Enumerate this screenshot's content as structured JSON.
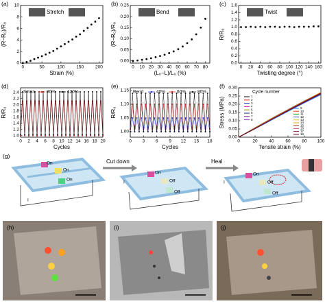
{
  "chart_data": [
    {
      "type": "scatter",
      "label": "(a)",
      "annotation": "Stretch",
      "xlabel": "Strain (%)",
      "ylabel": "(R−R₀)/R₀",
      "color": "#000000",
      "x": [
        0,
        10,
        20,
        30,
        40,
        50,
        60,
        70,
        80,
        90,
        100,
        110,
        120,
        130,
        140,
        150,
        160,
        170,
        180,
        190,
        200
      ],
      "values": [
        0,
        0.2,
        0.4,
        0.7,
        0.95,
        1.2,
        1.5,
        1.8,
        2.1,
        2.5,
        2.9,
        3.3,
        3.7,
        4.1,
        4.6,
        5.0,
        5.6,
        6.1,
        6.7,
        7.2,
        7.8
      ],
      "xlim": [
        -6,
        210
      ],
      "ylim": [
        0,
        10
      ],
      "xticks": [
        0,
        50,
        100,
        150,
        200
      ],
      "yticks": [
        0,
        2,
        4,
        6,
        8,
        10
      ]
    },
    {
      "type": "scatter",
      "label": "(b)",
      "annotation": "Bend",
      "xlabel": "(L₀−L)/L₀ (%)",
      "ylabel": "(R−R₀)/R₀",
      "color": "#000000",
      "x": [
        0,
        5,
        10,
        15,
        20,
        25,
        30,
        35,
        40,
        45,
        50,
        55,
        60,
        65,
        70,
        75,
        80
      ],
      "values": [
        0,
        0.002,
        0.005,
        0.008,
        0.012,
        0.017,
        0.022,
        0.028,
        0.035,
        0.043,
        0.053,
        0.065,
        0.08,
        0.097,
        0.12,
        0.15,
        0.19
      ],
      "xlim": [
        -3,
        85
      ],
      "ylim": [
        -0.01,
        0.25
      ],
      "xticks": [
        0,
        10,
        20,
        30,
        40,
        50,
        60,
        70,
        80
      ],
      "yticks": [
        {
          "value": 0,
          "label": "0.00"
        },
        0.05,
        {
          "value": 0.1,
          "label": "0.10"
        },
        0.15,
        {
          "value": 0.2,
          "label": "0.20"
        },
        0.25
      ]
    },
    {
      "type": "scatter",
      "label": "(c)",
      "annotation": "Twist",
      "xlabel": "Twisting degree (°)",
      "ylabel": "R/R₀",
      "color": "#000000",
      "x": [
        0,
        10,
        20,
        30,
        40,
        50,
        60,
        70,
        80,
        90,
        100,
        110,
        120,
        130,
        140,
        150,
        160
      ],
      "values": [
        1.0,
        1.0,
        1.01,
        1.0,
        1.01,
        1.0,
        1.01,
        1.01,
        1.0,
        1.01,
        1.01,
        1.0,
        1.01,
        1.01,
        1.01,
        1.02,
        1.02
      ],
      "xlim": [
        -5,
        165
      ],
      "ylim": [
        0,
        1.6
      ],
      "xticks": [
        0,
        20,
        40,
        60,
        80,
        100,
        120,
        140,
        160
      ],
      "yticks": [
        {
          "value": 0,
          "label": "0.0"
        },
        0.2,
        0.4,
        0.6,
        0.8,
        {
          "value": 1,
          "label": "1.0"
        },
        1.2,
        1.4,
        1.6
      ]
    },
    {
      "type": "line",
      "label": "(d)",
      "legend_title": "Strain",
      "xlabel": "Cycles",
      "ylabel": "R/R₀",
      "markers": true,
      "x": [
        0,
        0.5,
        1,
        1.5,
        2,
        2.5,
        3,
        3.5,
        4,
        4.5,
        5,
        5.5,
        6,
        6.5,
        7,
        7.5,
        8,
        8.5,
        9,
        9.5,
        10,
        10.5,
        11,
        11.5,
        12,
        12.5,
        13,
        13.5,
        14,
        14.5,
        15,
        15.5,
        16,
        16.5,
        17,
        17.5,
        18,
        18.5,
        19,
        19.5,
        20
      ],
      "series": [
        {
          "name": "80%",
          "color": "#d62020",
          "values": [
            1.0,
            2.12,
            1.0,
            2.12,
            1.0,
            2.12,
            1.0,
            2.12,
            1.0,
            2.12,
            1.0,
            2.12,
            1.0,
            2.12,
            1.0,
            2.12,
            1.0,
            2.12,
            1.0,
            2.12,
            1.0,
            2.12,
            1.0,
            2.12,
            1.0,
            2.12,
            1.0,
            2.12,
            1.0,
            2.12,
            1.0,
            2.12,
            1.0,
            2.12,
            1.0,
            2.12,
            1.0,
            2.12,
            1.0,
            2.12,
            1.0
          ]
        },
        {
          "name": "120%",
          "color": "#111111",
          "values": [
            1.03,
            2.42,
            1.03,
            2.42,
            1.03,
            2.42,
            1.03,
            2.42,
            1.03,
            2.42,
            1.03,
            2.42,
            1.03,
            2.42,
            1.03,
            2.42,
            1.03,
            2.42,
            1.03,
            2.42,
            1.03,
            2.42,
            1.03,
            2.42,
            1.03,
            2.42,
            1.03,
            2.42,
            1.03,
            2.42,
            1.03,
            2.42,
            1.03,
            2.42,
            1.03,
            2.42,
            1.03,
            2.42,
            1.03,
            2.42,
            1.03
          ]
        }
      ],
      "xlim": [
        0,
        20
      ],
      "ylim": [
        0.95,
        2.55
      ],
      "xticks": [
        0,
        2,
        4,
        6,
        8,
        10,
        12,
        14,
        16,
        18,
        20
      ],
      "yticks": [
        {
          "value": 1,
          "label": "1.0"
        },
        1.2,
        1.4,
        1.6,
        1.8,
        {
          "value": 2,
          "label": "2.0"
        },
        2.2,
        2.4
      ]
    },
    {
      "type": "line",
      "label": "(e)",
      "legend_title": "Bend",
      "xlabel": "Cycles",
      "ylabel": "R/R₀",
      "markers": true,
      "x": [
        0,
        0.5,
        1,
        1.5,
        2,
        2.5,
        3,
        3.5,
        4,
        4.5,
        5,
        5.5,
        6,
        6.5,
        7,
        7.5,
        8,
        8.5,
        9,
        9.5,
        10,
        10.5,
        11,
        11.5,
        12,
        12.5,
        13,
        13.5,
        14,
        14.5,
        15,
        15.5,
        16,
        16.5,
        17,
        17.5,
        18
      ],
      "series": [
        {
          "name": "40%",
          "color": "#2030d0",
          "values": [
            1.0,
            1.05,
            1.0,
            1.05,
            1.0,
            1.05,
            1.0,
            1.05,
            1.0,
            1.05,
            1.0,
            1.05,
            1.0,
            1.05,
            1.0,
            1.05,
            1.0,
            1.05,
            1.0,
            1.05,
            1.0,
            1.05,
            1.0,
            1.05,
            1.0,
            1.05,
            1.0,
            1.05,
            1.0,
            1.05,
            1.0,
            1.05,
            1.0,
            1.05,
            1.0,
            1.05,
            1.0
          ]
        },
        {
          "name": "60%",
          "color": "#d62020",
          "values": [
            1.01,
            1.1,
            1.01,
            1.1,
            1.01,
            1.1,
            1.01,
            1.1,
            1.01,
            1.1,
            1.01,
            1.1,
            1.01,
            1.1,
            1.01,
            1.1,
            1.01,
            1.1,
            1.01,
            1.1,
            1.01,
            1.1,
            1.01,
            1.1,
            1.01,
            1.1,
            1.01,
            1.1,
            1.01,
            1.1,
            1.01,
            1.1,
            1.01,
            1.1,
            1.01,
            1.1,
            1.01
          ]
        },
        {
          "name": "80%",
          "color": "#111111",
          "values": [
            1.0,
            1.14,
            1.0,
            1.14,
            1.0,
            1.14,
            1.0,
            1.14,
            1.0,
            1.14,
            1.0,
            1.14,
            1.0,
            1.14,
            1.0,
            1.14,
            1.0,
            1.14,
            1.0,
            1.14,
            1.0,
            1.14,
            1.0,
            1.14,
            1.0,
            1.14,
            1.0,
            1.14,
            1.0,
            1.14,
            1.0,
            1.14,
            1.0,
            1.14,
            1.0,
            1.14,
            1.0
          ]
        }
      ],
      "xlim": [
        0,
        18
      ],
      "ylim": [
        0.98,
        1.16
      ],
      "xticks": [
        0,
        3,
        6,
        9,
        12,
        15,
        18
      ],
      "yticks": [
        {
          "value": 1,
          "label": "1.00"
        },
        1.05,
        {
          "value": 1.1,
          "label": "1.10"
        },
        1.15
      ]
    },
    {
      "type": "line",
      "label": "(f)",
      "legend_title": "Cycle number",
      "xlabel": "Tensile strain (%)",
      "ylabel": "Stress (MPa)",
      "markers": false,
      "x": [
        0,
        20,
        40,
        60,
        80,
        100
      ],
      "series": [
        {
          "name": "1",
          "color": "#000000",
          "values": [
            0,
            0.058,
            0.114,
            0.168,
            0.221,
            0.272
          ]
        },
        {
          "name": "2",
          "color": "#e31a1c",
          "values": [
            0,
            0.056,
            0.112,
            0.165,
            0.218,
            0.268
          ]
        },
        {
          "name": "3",
          "color": "#1f3fd0",
          "values": [
            0,
            0.055,
            0.11,
            0.163,
            0.215,
            0.265
          ]
        },
        {
          "name": "4",
          "color": "#d020c0",
          "values": [
            0,
            0.054,
            0.108,
            0.161,
            0.213,
            0.263
          ]
        },
        {
          "name": "5",
          "color": "#8a8a00",
          "values": [
            0,
            0.053,
            0.107,
            0.16,
            0.212,
            0.262
          ]
        },
        {
          "name": "6",
          "color": "#1a1a80",
          "values": [
            0,
            0.052,
            0.106,
            0.159,
            0.211,
            0.261
          ]
        },
        {
          "name": "7",
          "color": "#7a1a8a",
          "values": [
            0,
            0.052,
            0.105,
            0.158,
            0.21,
            0.26
          ]
        },
        {
          "name": "8",
          "color": "#9a40c0",
          "values": [
            0,
            0.051,
            0.104,
            0.157,
            0.209,
            0.259
          ]
        },
        {
          "name": "9",
          "color": "#2080f0",
          "values": [
            0,
            0.051,
            0.104,
            0.156,
            0.208,
            0.258
          ]
        },
        {
          "name": "10",
          "color": "#f03030",
          "values": [
            0,
            0.055,
            0.11,
            0.164,
            0.217,
            0.268
          ]
        },
        {
          "name": "11",
          "color": "#20a020",
          "values": [
            0,
            0.056,
            0.111,
            0.165,
            0.218,
            0.27
          ]
        },
        {
          "name": "12",
          "color": "#3050e0",
          "values": [
            0,
            0.054,
            0.109,
            0.162,
            0.214,
            0.265
          ]
        },
        {
          "name": "13",
          "color": "#e0c020",
          "values": [
            0,
            0.057,
            0.113,
            0.167,
            0.22,
            0.273
          ]
        },
        {
          "name": "14",
          "color": "#f0a000",
          "values": [
            0,
            0.056,
            0.112,
            0.166,
            0.219,
            0.271
          ]
        },
        {
          "name": "15",
          "color": "#a02020",
          "values": [
            0,
            0.055,
            0.111,
            0.165,
            0.218,
            0.27
          ]
        },
        {
          "name": "16",
          "color": "#c06080",
          "values": [
            0,
            0.054,
            0.109,
            0.163,
            0.216,
            0.267
          ]
        },
        {
          "name": "17",
          "color": "#802040",
          "values": [
            0,
            0.053,
            0.108,
            0.162,
            0.215,
            0.266
          ]
        },
        {
          "name": "18",
          "color": "#600010",
          "values": [
            0,
            0.052,
            0.107,
            0.161,
            0.214,
            0.265
          ]
        }
      ],
      "xlim": [
        0,
        100
      ],
      "ylim": [
        0,
        0.3
      ],
      "xticks": [
        0,
        20,
        40,
        60,
        80,
        100
      ],
      "yticks": [
        {
          "value": 0,
          "label": "0.00"
        },
        0.05,
        {
          "value": 0.1,
          "label": "0.10"
        },
        0.15,
        {
          "value": 0.2,
          "label": "0.20"
        },
        0.25,
        {
          "value": 0.3,
          "label": "0.30"
        }
      ]
    }
  ],
  "diagram": {
    "label": "(g)",
    "step1": "Cut down",
    "step2": "Heal",
    "panel1": [
      "On",
      "On",
      "On",
      "I"
    ],
    "panel2": [
      "On",
      "Off",
      "Off",
      "I"
    ],
    "panel3": [
      "On",
      "Off",
      "Off",
      "I"
    ]
  },
  "photos": [
    "(h)",
    "(i)",
    "(j)"
  ]
}
